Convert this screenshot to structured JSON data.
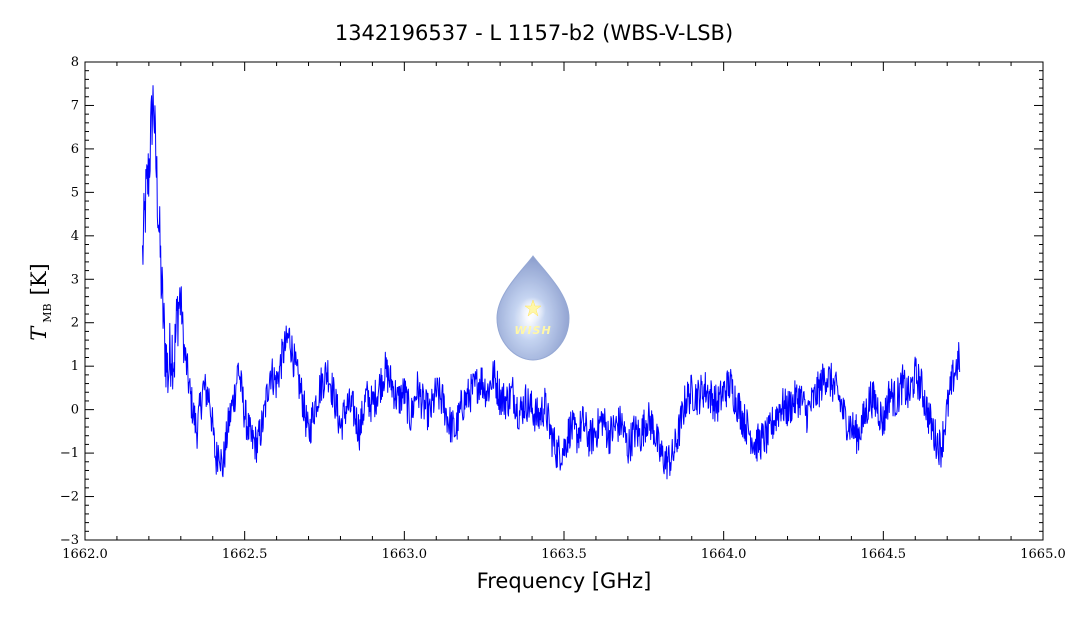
{
  "chart_data": {
    "type": "line",
    "title": "1342196537 - L 1157-b2 (WBS-V-LSB)",
    "xlabel": "Frequency [GHz]",
    "ylabel_main": "T",
    "ylabel_sub": "MB",
    "ylabel_unit": "[K]",
    "xlim": [
      1662.0,
      1665.0
    ],
    "ylim": [
      -3,
      8
    ],
    "x_ticks": [
      "1662.0",
      "1662.5",
      "1663.0",
      "1663.5",
      "1664.0",
      "1664.5",
      "1665.0"
    ],
    "y_ticks": [
      "−3",
      "−2",
      "−1",
      "0",
      "1",
      "2",
      "3",
      "4",
      "5",
      "6",
      "7",
      "8"
    ],
    "grid": false,
    "line_color": "#0000ff",
    "series": [
      {
        "x": [
          1662.18,
          1662.19,
          1662.2,
          1662.21,
          1662.215,
          1662.22,
          1662.23,
          1662.24,
          1662.25,
          1662.26,
          1662.27,
          1662.28,
          1662.29,
          1662.3,
          1662.31,
          1662.32,
          1662.33,
          1662.35,
          1662.37,
          1662.39,
          1662.41,
          1662.42,
          1662.43,
          1662.45,
          1662.47,
          1662.48,
          1662.5,
          1662.52,
          1662.54,
          1662.56,
          1662.58,
          1662.6,
          1662.62,
          1662.64,
          1662.66,
          1662.68,
          1662.7,
          1662.72,
          1662.74,
          1662.76,
          1662.78,
          1662.8,
          1662.82,
          1662.84,
          1662.86,
          1662.88,
          1662.9,
          1662.92,
          1662.94,
          1662.96,
          1662.98,
          1663.0,
          1663.02,
          1663.04,
          1663.06,
          1663.08,
          1663.1,
          1663.12,
          1663.14,
          1663.16,
          1663.18,
          1663.2,
          1663.22,
          1663.24,
          1663.26,
          1663.28,
          1663.3,
          1663.32,
          1663.34,
          1663.36,
          1663.38,
          1663.4,
          1663.42,
          1663.44,
          1663.46,
          1663.48,
          1663.5,
          1663.52,
          1663.54,
          1663.56,
          1663.58,
          1663.6,
          1663.62,
          1663.64,
          1663.66,
          1663.68,
          1663.7,
          1663.72,
          1663.74,
          1663.76,
          1663.78,
          1663.8,
          1663.82,
          1663.84,
          1663.86,
          1663.88,
          1663.9,
          1663.92,
          1663.94,
          1663.96,
          1663.98,
          1664.0,
          1664.02,
          1664.04,
          1664.06,
          1664.08,
          1664.1,
          1664.12,
          1664.14,
          1664.16,
          1664.18,
          1664.2,
          1664.22,
          1664.24,
          1664.26,
          1664.28,
          1664.3,
          1664.32,
          1664.34,
          1664.36,
          1664.38,
          1664.4,
          1664.42,
          1664.44,
          1664.46,
          1664.48,
          1664.5,
          1664.52,
          1664.54,
          1664.56,
          1664.58,
          1664.6,
          1664.62,
          1664.64,
          1664.66,
          1664.68,
          1664.7,
          1664.72,
          1664.74
        ],
        "y": [
          3.5,
          4.8,
          5.5,
          6.8,
          7.2,
          6.0,
          4.5,
          2.8,
          1.5,
          0.8,
          1.5,
          1.2,
          2.3,
          2.6,
          1.4,
          0.9,
          0.3,
          -0.5,
          0.5,
          0.3,
          -1.2,
          -0.8,
          -1.4,
          -0.3,
          0.4,
          1.0,
          -0.1,
          -0.7,
          -0.8,
          -0.2,
          0.9,
          0.6,
          1.3,
          1.7,
          0.9,
          0.3,
          -0.6,
          0.1,
          0.6,
          0.9,
          0.3,
          -0.4,
          0.1,
          0.0,
          -0.5,
          0.3,
          0.1,
          0.5,
          0.9,
          0.6,
          0.2,
          0.4,
          -0.2,
          0.5,
          0.1,
          -0.1,
          0.4,
          0.2,
          -0.3,
          -0.5,
          0.1,
          0.3,
          0.5,
          0.7,
          0.4,
          0.8,
          0.3,
          0.2,
          0.4,
          -0.1,
          0.2,
          0.0,
          -0.2,
          0.1,
          -0.6,
          -1.0,
          -0.9,
          -0.4,
          -0.6,
          -0.3,
          -0.7,
          -0.5,
          -0.2,
          -0.6,
          -0.4,
          -0.3,
          -0.9,
          -0.5,
          -0.6,
          -0.2,
          -0.4,
          -1.0,
          -1.2,
          -1.1,
          -0.5,
          0.2,
          0.4,
          0.3,
          0.5,
          0.3,
          0.1,
          0.4,
          0.6,
          0.2,
          -0.2,
          -0.5,
          -0.8,
          -0.7,
          -0.6,
          -0.2,
          0.1,
          0.0,
          0.2,
          0.3,
          -0.1,
          0.2,
          0.5,
          0.8,
          0.6,
          0.3,
          -0.2,
          -0.4,
          -0.6,
          -0.2,
          0.3,
          0.1,
          -0.3,
          0.4,
          0.2,
          0.6,
          0.3,
          0.8,
          0.5,
          -0.1,
          -0.6,
          -0.9,
          0.0,
          0.8,
          1.2
        ]
      }
    ]
  },
  "logo": {
    "text": "WISH",
    "drop_color": "#9fb6e6",
    "star_color": "#fff7a8"
  }
}
